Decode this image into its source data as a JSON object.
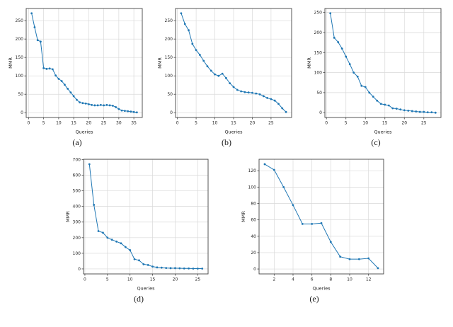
{
  "colors": {
    "line": "#1f77b4",
    "marker": "#1f77b4",
    "grid": "#d9d9d9",
    "spine": "#444444",
    "tick_text": "#262626"
  },
  "chart_data": [
    {
      "type": "line",
      "caption": "(a)",
      "xlabel": "Queries",
      "ylabel": "MMR",
      "xlim": [
        -0.8,
        37.8
      ],
      "ylim": [
        -13,
        283
      ],
      "xticks": [
        0,
        5,
        10,
        15,
        20,
        25,
        30,
        35
      ],
      "yticks": [
        0,
        50,
        100,
        150,
        200,
        250
      ],
      "grid": true,
      "x": [
        1,
        2,
        3,
        4,
        5,
        6,
        7,
        8,
        9,
        10,
        11,
        12,
        13,
        14,
        15,
        16,
        17,
        18,
        19,
        20,
        21,
        22,
        23,
        24,
        25,
        26,
        27,
        28,
        29,
        30,
        31,
        32,
        33,
        34,
        35,
        36
      ],
      "y": [
        270,
        232,
        197,
        193,
        121,
        119,
        120,
        118,
        101,
        92,
        86,
        76,
        65,
        55,
        45,
        35,
        28,
        26,
        25,
        23,
        21,
        20,
        20,
        21,
        20,
        21,
        20,
        19,
        15,
        10,
        6,
        5,
        4,
        3,
        2,
        1
      ]
    },
    {
      "type": "line",
      "caption": "(b)",
      "xlabel": "Queries",
      "ylabel": "MMR",
      "xlim": [
        -0.5,
        30.5
      ],
      "ylim": [
        -13,
        283
      ],
      "xticks": [
        0,
        5,
        10,
        15,
        20,
        25
      ],
      "yticks": [
        0,
        50,
        100,
        150,
        200,
        250
      ],
      "grid": true,
      "x": [
        1,
        2,
        3,
        4,
        5,
        6,
        7,
        8,
        9,
        10,
        11,
        12,
        13,
        14,
        15,
        16,
        17,
        18,
        19,
        20,
        21,
        22,
        23,
        24,
        25,
        26,
        27,
        28,
        29
      ],
      "y": [
        270,
        241,
        224,
        187,
        170,
        157,
        141,
        126,
        114,
        104,
        100,
        106,
        94,
        80,
        70,
        62,
        58,
        56,
        55,
        54,
        52,
        50,
        45,
        40,
        37,
        33,
        24,
        12,
        2
      ]
    },
    {
      "type": "line",
      "caption": "(c)",
      "xlabel": "Queries",
      "ylabel": "MMR",
      "xlim": [
        -0.4,
        29.4
      ],
      "ylim": [
        -12,
        260
      ],
      "xticks": [
        0,
        5,
        10,
        15,
        20,
        25
      ],
      "yticks": [
        0,
        50,
        100,
        150,
        200,
        250
      ],
      "grid": true,
      "x": [
        1,
        2,
        3,
        4,
        5,
        6,
        7,
        8,
        9,
        10,
        11,
        12,
        13,
        14,
        15,
        16,
        17,
        18,
        19,
        20,
        21,
        22,
        23,
        24,
        25,
        26,
        27,
        28
      ],
      "y": [
        248,
        187,
        176,
        160,
        140,
        121,
        100,
        90,
        67,
        64,
        50,
        40,
        30,
        22,
        20,
        18,
        11,
        10,
        8,
        6,
        5,
        4,
        3,
        2,
        2,
        1,
        1,
        0
      ]
    },
    {
      "type": "line",
      "caption": "(d)",
      "xlabel": "Queries",
      "ylabel": "MMR",
      "xlim": [
        -0.3,
        27.3
      ],
      "ylim": [
        -32,
        702
      ],
      "xticks": [
        0,
        5,
        10,
        15,
        20,
        25
      ],
      "yticks": [
        0,
        100,
        200,
        300,
        400,
        500,
        600,
        700
      ],
      "grid": true,
      "x": [
        1,
        2,
        3,
        4,
        5,
        6,
        7,
        8,
        9,
        10,
        11,
        12,
        13,
        14,
        15,
        16,
        17,
        18,
        19,
        20,
        21,
        22,
        23,
        24,
        25,
        26
      ],
      "y": [
        670,
        410,
        242,
        232,
        200,
        187,
        175,
        164,
        140,
        120,
        62,
        55,
        30,
        25,
        15,
        10,
        8,
        6,
        5,
        5,
        4,
        3,
        3,
        2,
        2,
        2
      ]
    },
    {
      "type": "line",
      "caption": "(e)",
      "xlabel": "Queries",
      "ylabel": "MMR",
      "xlim": [
        0.4,
        13.6
      ],
      "ylim": [
        -6,
        134
      ],
      "xticks": [
        2,
        4,
        6,
        8,
        10,
        12
      ],
      "yticks": [
        0,
        20,
        40,
        60,
        80,
        100,
        120
      ],
      "grid": true,
      "x": [
        1,
        2,
        3,
        4,
        5,
        6,
        7,
        8,
        9,
        10,
        11,
        12,
        13
      ],
      "y": [
        128,
        121,
        100,
        78,
        55,
        55,
        56,
        33,
        15,
        12,
        12,
        13,
        1
      ]
    }
  ]
}
